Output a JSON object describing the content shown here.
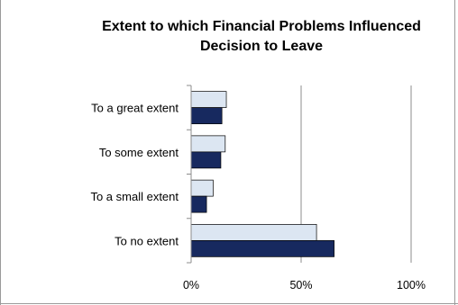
{
  "chart_data": {
    "type": "bar",
    "orientation": "horizontal",
    "title": "Extent to which Financial Problems Influenced Decision to Leave",
    "categories": [
      "To a great extent",
      "To some extent",
      "To a small extent",
      "To no extent"
    ],
    "series": [
      {
        "values": [
          16,
          15.5,
          10,
          57
        ],
        "color": "#dce6f2"
      },
      {
        "values": [
          14,
          13.5,
          7,
          65
        ],
        "color": "#17295f"
      }
    ],
    "x_ticks": [
      "0%",
      "50%",
      "100%"
    ],
    "xlim": [
      0,
      100
    ],
    "grid": true,
    "legend": "none"
  }
}
